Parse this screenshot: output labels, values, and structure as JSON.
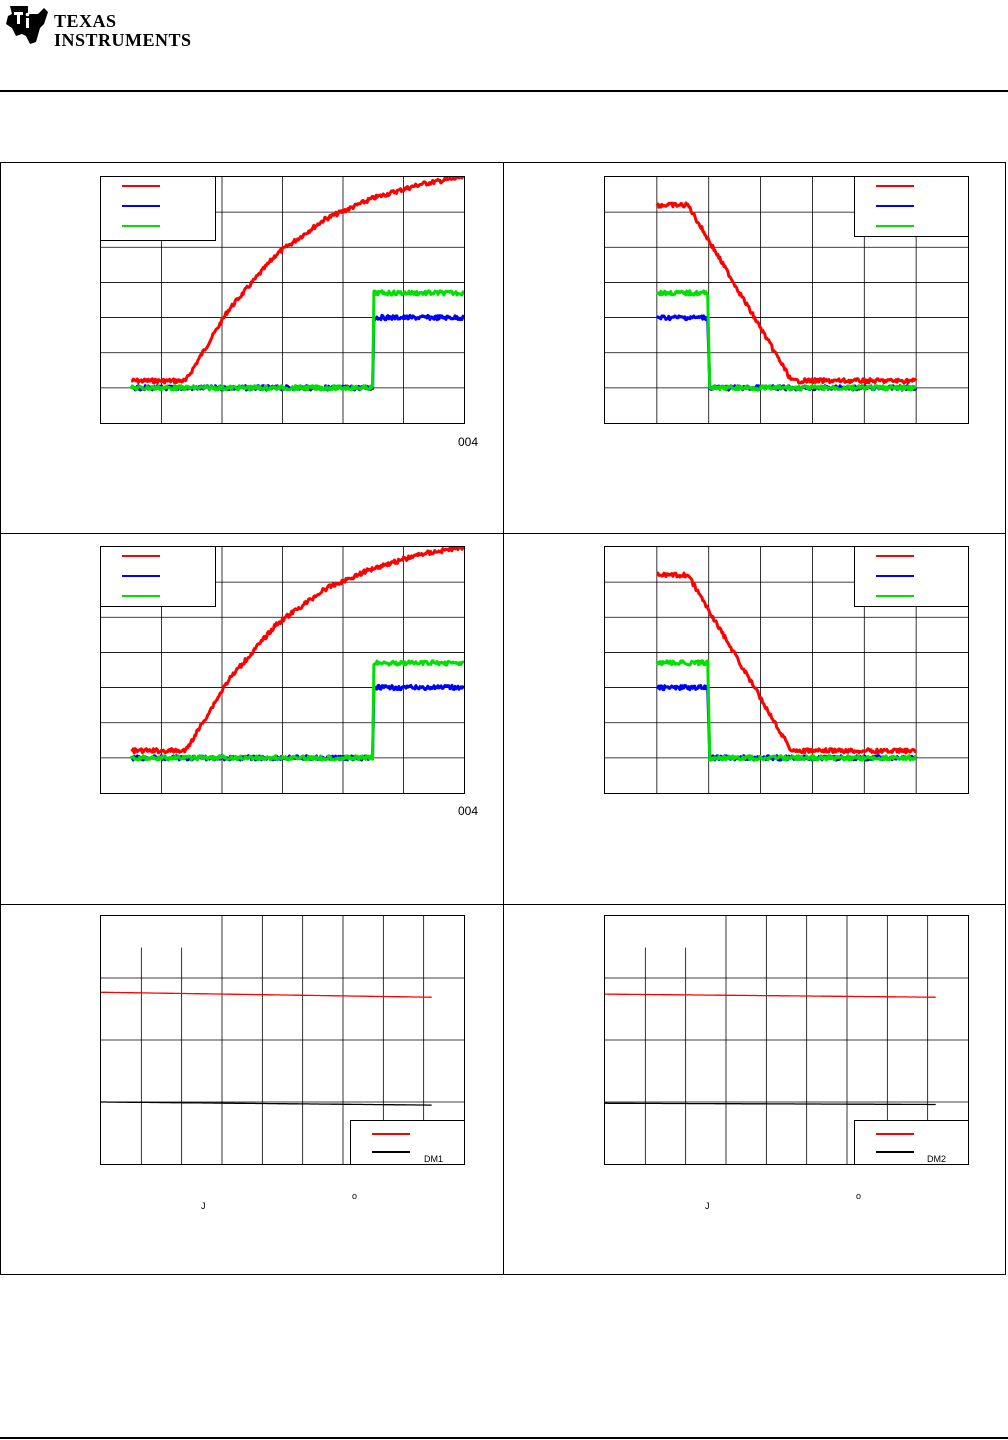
{
  "header": {
    "logo_line1": "TEXAS",
    "logo_line2": "INSTRUMENTS",
    "colors": {
      "rule": "#000000"
    }
  },
  "figures": {
    "fig1": {
      "code": "004"
    },
    "fig3": {
      "code": "004"
    },
    "fig5": {
      "legend_tag": "DM1",
      "axis_sub": "J",
      "degree": "o"
    },
    "fig6": {
      "legend_tag": "DM2",
      "axis_sub": "J",
      "degree": "o"
    }
  },
  "colors": {
    "red": "#ff0000",
    "blue": "#0000ff",
    "green": "#00e000",
    "black": "#000000",
    "grid": "#000000"
  },
  "chart_data": [
    {
      "type": "line",
      "series": [
        {
          "color": "#ff0000",
          "x": [
            0,
            0.9,
            1.6,
            2.4,
            3.2,
            4.0,
            4.8,
            5.5
          ],
          "y": [
            0.2,
            0.2,
            2.2,
            3.8,
            4.8,
            5.4,
            5.8,
            6.0
          ]
        },
        {
          "color": "#0000ff",
          "x": [
            0,
            3.99,
            4.01,
            5.5
          ],
          "y": [
            0,
            0,
            2,
            2
          ]
        },
        {
          "color": "#00e000",
          "x": [
            0,
            3.99,
            4.01,
            5.5
          ],
          "y": [
            0,
            0,
            2.7,
            2.7
          ]
        }
      ],
      "xlim": [
        -0.5,
        5.5
      ],
      "ylim": [
        -1,
        6
      ]
    },
    {
      "type": "line",
      "series": [
        {
          "color": "#ff0000",
          "x": [
            1,
            1.6,
            3.6,
            6
          ],
          "y": [
            5.2,
            5.2,
            0.2,
            0.2
          ]
        },
        {
          "color": "#0000ff",
          "x": [
            1,
            1.98,
            2.02,
            6
          ],
          "y": [
            2,
            2,
            0,
            0
          ]
        },
        {
          "color": "#00e000",
          "x": [
            1,
            1.98,
            2.02,
            6
          ],
          "y": [
            2.7,
            2.7,
            0,
            0
          ]
        }
      ],
      "xlim": [
        0,
        7
      ],
      "ylim": [
        -1,
        6
      ]
    },
    {
      "type": "line",
      "series": [
        {
          "color": "#ff0000",
          "x": [
            0,
            0.9,
            1.6,
            2.4,
            3.2,
            4.0,
            4.8,
            5.5
          ],
          "y": [
            0.2,
            0.2,
            2.2,
            3.8,
            4.8,
            5.4,
            5.8,
            6.0
          ]
        },
        {
          "color": "#0000ff",
          "x": [
            0,
            3.99,
            4.01,
            5.5
          ],
          "y": [
            0,
            0,
            2,
            2
          ]
        },
        {
          "color": "#00e000",
          "x": [
            0,
            3.99,
            4.01,
            5.5
          ],
          "y": [
            0,
            0,
            2.7,
            2.7
          ]
        }
      ],
      "xlim": [
        -0.5,
        5.5
      ],
      "ylim": [
        -1,
        6
      ]
    },
    {
      "type": "line",
      "series": [
        {
          "color": "#ff0000",
          "x": [
            1,
            1.6,
            3.6,
            6
          ],
          "y": [
            5.2,
            5.2,
            0.2,
            0.2
          ]
        },
        {
          "color": "#0000ff",
          "x": [
            1,
            1.98,
            2.02,
            6
          ],
          "y": [
            2,
            2,
            0,
            0
          ]
        },
        {
          "color": "#00e000",
          "x": [
            1,
            1.98,
            2.02,
            6
          ],
          "y": [
            2.7,
            2.7,
            0,
            0
          ]
        }
      ],
      "xlim": [
        0,
        7
      ],
      "ylim": [
        -1,
        6
      ]
    },
    {
      "type": "line",
      "series": [
        {
          "color": "#ff0000",
          "x": [
            0,
            8.2
          ],
          "y": [
            2.77,
            2.69
          ]
        },
        {
          "color": "#000000",
          "x": [
            0,
            8.2
          ],
          "y": [
            1.0,
            0.95
          ]
        }
      ],
      "xlim": [
        0,
        9
      ],
      "ylim": [
        0,
        4
      ],
      "legend_position": "bottom-right"
    },
    {
      "type": "line",
      "series": [
        {
          "color": "#ff0000",
          "x": [
            0,
            8.2
          ],
          "y": [
            2.74,
            2.69
          ]
        },
        {
          "color": "#000000",
          "x": [
            0,
            8.2
          ],
          "y": [
            0.98,
            0.96
          ]
        }
      ],
      "xlim": [
        0,
        9
      ],
      "ylim": [
        0,
        4
      ],
      "legend_position": "bottom-right"
    }
  ]
}
